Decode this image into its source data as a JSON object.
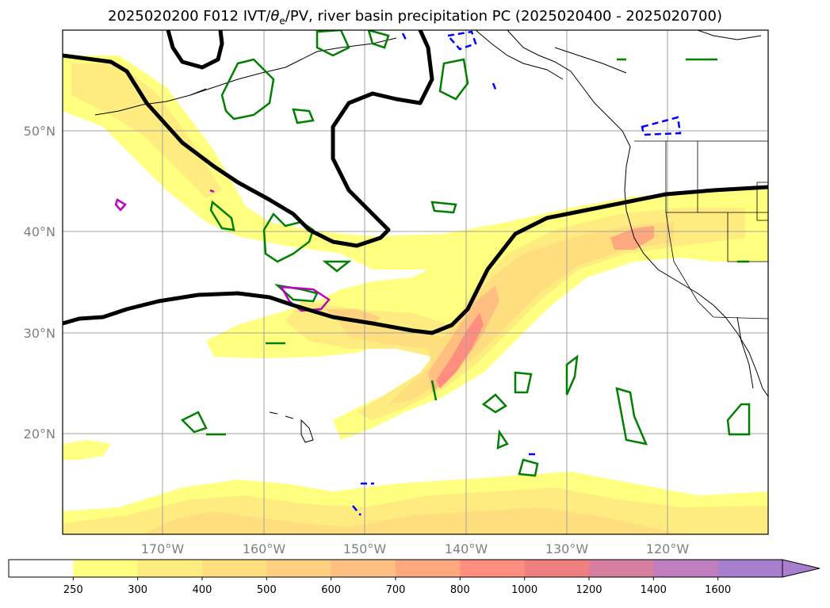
{
  "title": {
    "prefix": "2025020200 F012 IVT/",
    "theta": "θ",
    "theta_sub": "e",
    "suffix": "/PV, river basin precipitation PC (2025020400 - 2025020700)"
  },
  "axes": {
    "lon_ticks": [
      "170°W",
      "160°W",
      "150°W",
      "140°W",
      "130°W",
      "120°W"
    ],
    "lat_ticks": [
      "50°N",
      "40°N",
      "30°N",
      "20°N"
    ],
    "grid": true
  },
  "colorbar": {
    "levels": [
      "250",
      "300",
      "400",
      "500",
      "600",
      "700",
      "800",
      "1000",
      "1200",
      "1400",
      "1600"
    ],
    "colors": [
      "#ffffff",
      "#ffff80",
      "#ffec80",
      "#ffde80",
      "#ffd080",
      "#ffbf80",
      "#ffa880",
      "#ff8d80",
      "#f08080",
      "#d87fa0",
      "#bf7fbf",
      "#a87fcf"
    ],
    "extend": "max"
  },
  "colors": {
    "pv_contour": "#000000",
    "precip_positive": "#008000",
    "precip_negative": "#0000ff",
    "theta_e": "#c000c0",
    "coastline": "#000000"
  }
}
